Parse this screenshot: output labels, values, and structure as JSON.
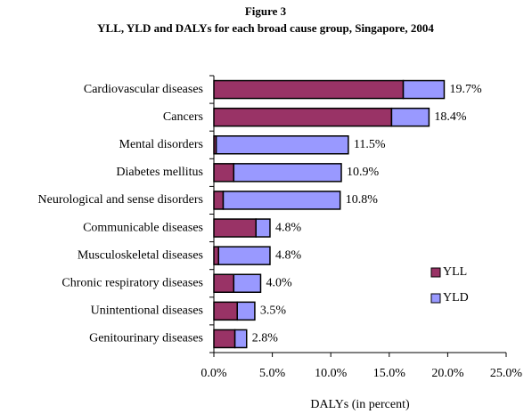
{
  "chart_data": {
    "type": "stacked_barh",
    "title": "Figure 3",
    "subtitle": "YLL, YLD and DALYs for each broad cause group, Singapore, 2004",
    "xlabel": "DALYs (in percent)",
    "categories": [
      "Cardiovascular diseases",
      "Cancers",
      "Mental disorders",
      "Diabetes mellitus",
      "Neurological and sense disorders",
      "Communicable diseases",
      "Musculoskeletal diseases",
      "Chronic respiratory diseases",
      "Unintentional diseases",
      "Genitourinary diseases"
    ],
    "series": [
      {
        "name": "YLL",
        "color": "#993366",
        "values": [
          16.2,
          15.2,
          0.2,
          1.7,
          0.8,
          3.6,
          0.4,
          1.7,
          2.0,
          1.8
        ]
      },
      {
        "name": "YLD",
        "color": "#9999ff",
        "values": [
          3.5,
          3.2,
          11.3,
          9.2,
          10.0,
          1.2,
          4.4,
          2.3,
          1.5,
          1.0
        ]
      }
    ],
    "totals": [
      19.7,
      18.4,
      11.5,
      10.9,
      10.8,
      4.8,
      4.8,
      4.0,
      3.5,
      2.8
    ],
    "total_labels": [
      "19.7%",
      "18.4%",
      "11.5%",
      "10.9%",
      "10.8%",
      "4.8%",
      "4.8%",
      "4.0%",
      "3.5%",
      "2.8%"
    ],
    "xlim": [
      0,
      25
    ],
    "xticks": [
      {
        "value": 0,
        "label": "0.0%"
      },
      {
        "value": 5,
        "label": "5.0%"
      },
      {
        "value": 10,
        "label": "10.0%"
      },
      {
        "value": 15,
        "label": "15.0%"
      },
      {
        "value": 20,
        "label": "20.0%"
      },
      {
        "value": 25,
        "label": "25.0%"
      }
    ],
    "legend": "right"
  }
}
